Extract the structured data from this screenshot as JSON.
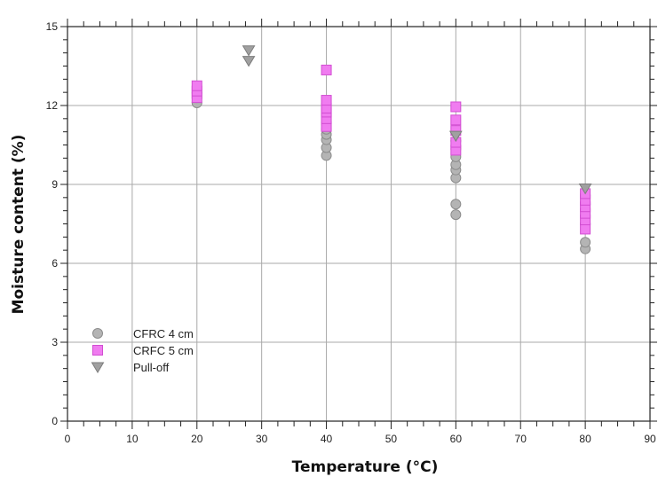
{
  "chart_data": {
    "type": "scatter",
    "xlabel": "Temperature (°C)",
    "ylabel": "Moisture content  (%)",
    "xlim": [
      0,
      90
    ],
    "ylim": [
      0,
      15
    ],
    "xticks": [
      0,
      10,
      20,
      30,
      40,
      50,
      60,
      70,
      80,
      90
    ],
    "yticks": [
      0,
      3,
      6,
      9,
      12,
      15
    ],
    "grid": true,
    "legend_position": "bottom-left",
    "series": [
      {
        "name": "CFRC 4 cm",
        "marker": "circle",
        "color": "#b4b4b4",
        "edge_color": "#8c8c8c",
        "points": [
          [
            20,
            12.1
          ],
          [
            20,
            12.3
          ],
          [
            20,
            12.5
          ],
          [
            40,
            10.1
          ],
          [
            40,
            10.4
          ],
          [
            40,
            10.7
          ],
          [
            40,
            10.9
          ],
          [
            40,
            11.1
          ],
          [
            40,
            11.3
          ],
          [
            60,
            7.85
          ],
          [
            60,
            8.25
          ],
          [
            60,
            9.25
          ],
          [
            60,
            9.55
          ],
          [
            60,
            9.75
          ],
          [
            60,
            10.05
          ],
          [
            60,
            10.35
          ],
          [
            60,
            10.65
          ],
          [
            80,
            6.55
          ],
          [
            80,
            6.8
          ],
          [
            80,
            7.5
          ],
          [
            80,
            8.25
          ],
          [
            80,
            8.6
          ]
        ]
      },
      {
        "name": "CRFC 5 cm",
        "marker": "square",
        "color": "#f07cf0",
        "edge_color": "#d24ed2",
        "points": [
          [
            20,
            12.3
          ],
          [
            20,
            12.55
          ],
          [
            20,
            12.75
          ],
          [
            40,
            11.2
          ],
          [
            40,
            11.5
          ],
          [
            40,
            11.75
          ],
          [
            40,
            11.9
          ],
          [
            40,
            12.2
          ],
          [
            40,
            13.35
          ],
          [
            60,
            10.3
          ],
          [
            60,
            10.6
          ],
          [
            60,
            11.05
          ],
          [
            60,
            11.45
          ],
          [
            60,
            11.95
          ],
          [
            80,
            7.3
          ],
          [
            80,
            7.65
          ],
          [
            80,
            7.9
          ],
          [
            80,
            8.15
          ],
          [
            80,
            8.4
          ],
          [
            80,
            8.65
          ]
        ]
      },
      {
        "name": "Pull-off",
        "marker": "triangle-down",
        "color": "#a0a0a0",
        "edge_color": "#7c7c7c",
        "points": [
          [
            28,
            13.7
          ],
          [
            28,
            14.1
          ],
          [
            60,
            10.85
          ],
          [
            80,
            8.85
          ]
        ]
      }
    ]
  }
}
